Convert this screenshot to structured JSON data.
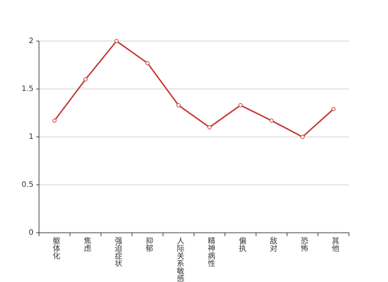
{
  "chart_data": {
    "type": "line",
    "categories": [
      "躯体化",
      "焦虑",
      "强迫症状",
      "抑郁",
      "人际关系敏感",
      "精神病性",
      "偏执",
      "敌对",
      "恐怖",
      "其他"
    ],
    "values": [
      1.17,
      1.6,
      2.0,
      1.77,
      1.33,
      1.1,
      1.33,
      1.17,
      1.0,
      1.29
    ],
    "color": "#c23531",
    "ylim": [
      0,
      2
    ],
    "yticks": [
      0,
      0.5,
      1,
      1.5,
      2
    ],
    "grid": true
  }
}
